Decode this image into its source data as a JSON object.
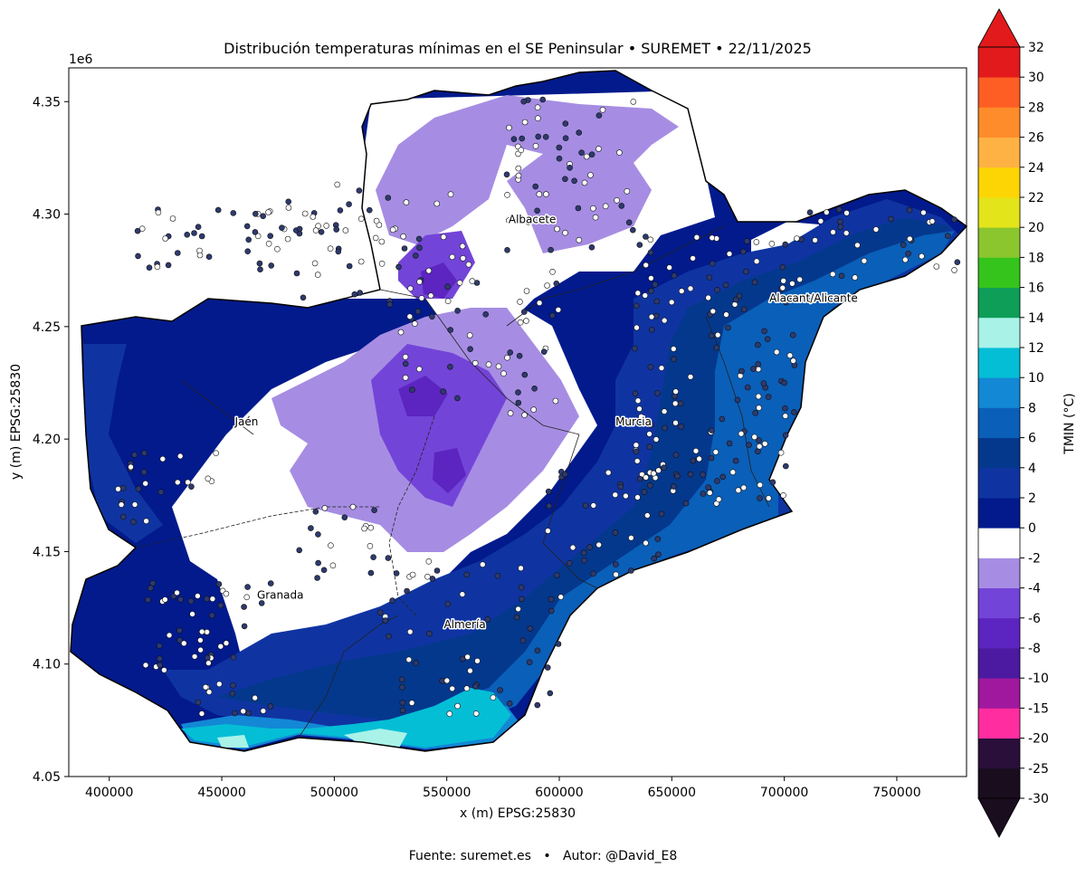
{
  "title": "Distribución temperaturas mínimas en el SE Peninsular • SUREMET • 22/11/2025",
  "footer": {
    "source": "Fuente: suremet.es",
    "separator": "•",
    "author": "Autor: @David_E8"
  },
  "axes": {
    "xlabel": "x (m) EPSG:25830",
    "ylabel": "y (m) EPSG:25830",
    "y_offset_label": "1e6",
    "xlim": [
      382000,
      781000
    ],
    "ylim": [
      4.05,
      4.365
    ],
    "x_ticks": [
      {
        "value": 400000,
        "label": "400000"
      },
      {
        "value": 450000,
        "label": "450000"
      },
      {
        "value": 500000,
        "label": "500000"
      },
      {
        "value": 550000,
        "label": "550000"
      },
      {
        "value": 600000,
        "label": "600000"
      },
      {
        "value": 650000,
        "label": "650000"
      },
      {
        "value": 700000,
        "label": "700000"
      },
      {
        "value": 750000,
        "label": "750000"
      }
    ],
    "y_ticks": [
      {
        "value": 4.05,
        "label": "4.05"
      },
      {
        "value": 4.1,
        "label": "4.10"
      },
      {
        "value": 4.15,
        "label": "4.15"
      },
      {
        "value": 4.2,
        "label": "4.20"
      },
      {
        "value": 4.25,
        "label": "4.25"
      },
      {
        "value": 4.3,
        "label": "4.30"
      },
      {
        "value": 4.35,
        "label": "4.35"
      }
    ]
  },
  "cities": [
    {
      "name": "Albacete",
      "x": 588000,
      "y": 4.296
    },
    {
      "name": "Jaén",
      "x": 461000,
      "y": 4.206
    },
    {
      "name": "Murcia",
      "x": 633000,
      "y": 4.206
    },
    {
      "name": "Alacant/Alicante",
      "x": 713000,
      "y": 4.261
    },
    {
      "name": "Granada",
      "x": 476000,
      "y": 4.129
    },
    {
      "name": "Almería",
      "x": 558000,
      "y": 4.116
    }
  ],
  "colorbar": {
    "label": "TMIN (°C)",
    "over_color": "#e31a1c",
    "under_color": "#1a0d1e",
    "bins": [
      {
        "low": "-30",
        "high": "-25",
        "color": "#1a0d1e"
      },
      {
        "low": "-25",
        "high": "-20",
        "color": "#2a0f3a"
      },
      {
        "low": "-20",
        "high": "-15",
        "color": "#ff2da0"
      },
      {
        "low": "-15",
        "high": "-10",
        "color": "#a0189e"
      },
      {
        "low": "-10",
        "high": "-8",
        "color": "#4b1aa0"
      },
      {
        "low": "-8",
        "high": "-6",
        "color": "#5c24c0"
      },
      {
        "low": "-6",
        "high": "-4",
        "color": "#7344d8"
      },
      {
        "low": "-4",
        "high": "-2",
        "color": "#a68de3"
      },
      {
        "low": "-2",
        "high": "0",
        "color": "#ffffff"
      },
      {
        "low": "0",
        "high": "2",
        "color": "#021a8c"
      },
      {
        "low": "2",
        "high": "4",
        "color": "#0f34a2"
      },
      {
        "low": "4",
        "high": "6",
        "color": "#04388d"
      },
      {
        "low": "6",
        "high": "8",
        "color": "#0a5fb8"
      },
      {
        "low": "8",
        "high": "10",
        "color": "#1388d5"
      },
      {
        "low": "10",
        "high": "12",
        "color": "#04bed6"
      },
      {
        "low": "12",
        "high": "14",
        "color": "#a8f2e8"
      },
      {
        "low": "14",
        "high": "16",
        "color": "#0e9e58"
      },
      {
        "low": "16",
        "high": "18",
        "color": "#35c41c"
      },
      {
        "low": "18",
        "high": "20",
        "color": "#8bc62e"
      },
      {
        "low": "20",
        "high": "22",
        "color": "#e4e41a"
      },
      {
        "low": "22",
        "high": "24",
        "color": "#fed504"
      },
      {
        "low": "24",
        "high": "26",
        "color": "#feb244"
      },
      {
        "low": "26",
        "high": "28",
        "color": "#fe8c2a"
      },
      {
        "low": "28",
        "high": "30",
        "color": "#fe5e24"
      },
      {
        "low": "30",
        "high": "32",
        "color": "#e31a1c"
      }
    ],
    "tick_labels": [
      "-30",
      "-25",
      "-20",
      "-15",
      "-10",
      "-8",
      "-6",
      "-4",
      "-2",
      "0",
      "2",
      "4",
      "6",
      "8",
      "10",
      "12",
      "14",
      "16",
      "18",
      "20",
      "22",
      "24",
      "26",
      "28",
      "30",
      "32"
    ]
  }
}
